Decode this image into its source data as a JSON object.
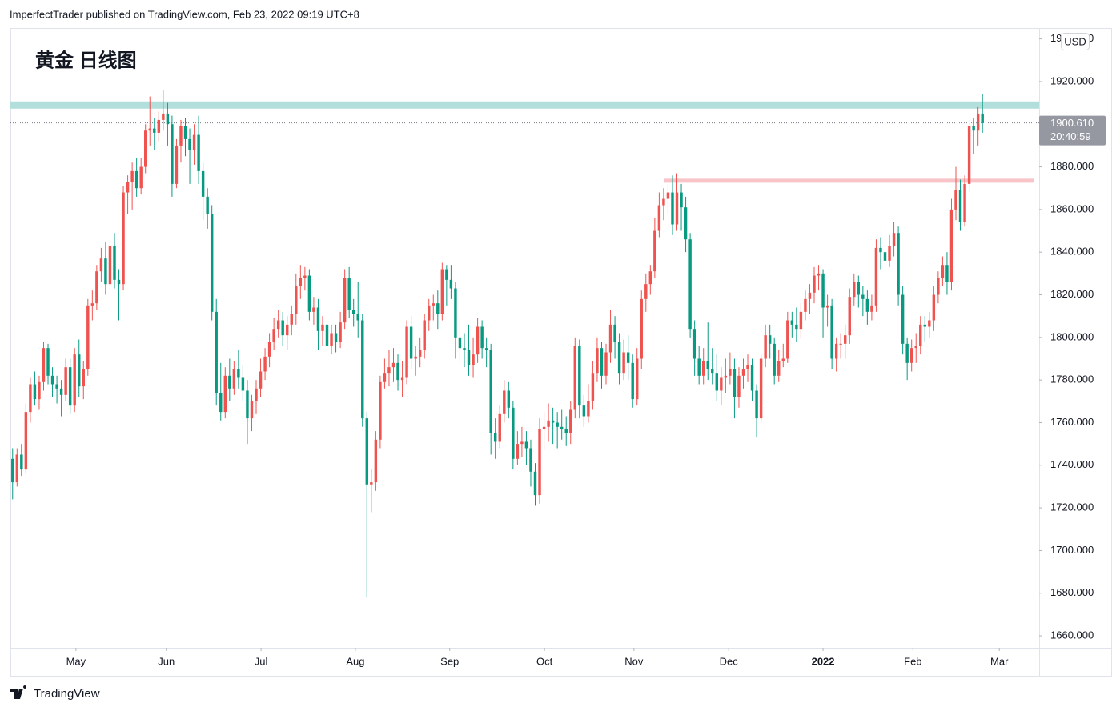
{
  "header": "ImperfectTrader published on TradingView.com, Feb 23, 2022 09:19 UTC+8",
  "footer": "TradingView",
  "chart_data": {
    "type": "candlestick",
    "title": "黄金 日线图",
    "currency": "USD",
    "up_color": "#ef5350",
    "down_color": "#089981",
    "xlim": [
      -0.5,
      231.8
    ],
    "xticks": [
      {
        "value": 14.3,
        "label": "May"
      },
      {
        "value": 34.7,
        "label": "Jun"
      },
      {
        "value": 56.1,
        "label": "Jul"
      },
      {
        "value": 77.4,
        "label": "Aug"
      },
      {
        "value": 98.7,
        "label": "Sep"
      },
      {
        "value": 120.1,
        "label": "Oct"
      },
      {
        "value": 140.3,
        "label": "Nov"
      },
      {
        "value": 161.7,
        "label": "Dec"
      },
      {
        "value": 183,
        "label": "2022",
        "bold": true
      },
      {
        "value": 203.3,
        "label": "Feb"
      },
      {
        "value": 222.8,
        "label": "Mar"
      }
    ],
    "ylim": [
      1654.4,
      1945.1
    ],
    "yticks": [
      {
        "value": 1660,
        "label": "1660.000"
      },
      {
        "value": 1680,
        "label": "1680.000"
      },
      {
        "value": 1700,
        "label": "1700.000"
      },
      {
        "value": 1720,
        "label": "1720.000"
      },
      {
        "value": 1740,
        "label": "1740.000"
      },
      {
        "value": 1760,
        "label": "1760.000"
      },
      {
        "value": 1780,
        "label": "1780.000"
      },
      {
        "value": 1800,
        "label": "1800.000"
      },
      {
        "value": 1820,
        "label": "1820.000"
      },
      {
        "value": 1840,
        "label": "1840.000"
      },
      {
        "value": 1860,
        "label": "1860.000"
      },
      {
        "value": 1880,
        "label": "1880.000"
      },
      {
        "value": 1900,
        "label": "1900.000"
      },
      {
        "value": 1920,
        "label": "1920.000"
      },
      {
        "value": 1940,
        "label": "1940.000"
      }
    ],
    "levels": [
      {
        "value": 1909,
        "color": "#b2dfdb"
      },
      {
        "value": 1873.5,
        "color": "#f8c4c8",
        "x_start": 147.2
      }
    ],
    "last_price": {
      "value": 1900.61,
      "label": "1900.610"
    },
    "countdown": "20:40:59",
    "candles": [
      [
        1743,
        1748,
        1724,
        1732
      ],
      [
        1732,
        1748,
        1730,
        1745
      ],
      [
        1745,
        1750,
        1735,
        1738
      ],
      [
        1738,
        1769,
        1736,
        1765
      ],
      [
        1765,
        1781,
        1760,
        1778
      ],
      [
        1778,
        1784,
        1768,
        1771
      ],
      [
        1771,
        1782,
        1766,
        1779
      ],
      [
        1779,
        1798,
        1775,
        1795
      ],
      [
        1795,
        1797,
        1778,
        1782
      ],
      [
        1782,
        1786,
        1772,
        1778
      ],
      [
        1778,
        1782,
        1769,
        1776
      ],
      [
        1776,
        1780,
        1763,
        1773
      ],
      [
        1773,
        1790,
        1770,
        1786
      ],
      [
        1786,
        1790,
        1764,
        1768
      ],
      [
        1768,
        1795,
        1765,
        1792
      ],
      [
        1792,
        1799,
        1772,
        1777
      ],
      [
        1777,
        1789,
        1771,
        1785
      ],
      [
        1785,
        1818,
        1782,
        1815
      ],
      [
        1815,
        1822,
        1808,
        1816
      ],
      [
        1816,
        1834,
        1813,
        1831
      ],
      [
        1831,
        1842,
        1826,
        1837
      ],
      [
        1837,
        1845,
        1820,
        1825
      ],
      [
        1825,
        1846,
        1822,
        1843
      ],
      [
        1843,
        1849,
        1823,
        1827
      ],
      [
        1827,
        1832,
        1808,
        1825
      ],
      [
        1825,
        1871,
        1822,
        1868
      ],
      [
        1868,
        1876,
        1858,
        1873
      ],
      [
        1873,
        1882,
        1860,
        1878
      ],
      [
        1878,
        1884,
        1866,
        1870
      ],
      [
        1870,
        1884,
        1867,
        1880
      ],
      [
        1880,
        1900,
        1877,
        1897
      ],
      [
        1897,
        1913,
        1890,
        1898
      ],
      [
        1898,
        1903,
        1888,
        1896
      ],
      [
        1896,
        1906,
        1892,
        1902
      ],
      [
        1902,
        1916,
        1897,
        1905
      ],
      [
        1905,
        1910,
        1890,
        1900
      ],
      [
        1900,
        1904,
        1866,
        1872
      ],
      [
        1872,
        1893,
        1870,
        1890
      ],
      [
        1890,
        1902,
        1882,
        1899
      ],
      [
        1899,
        1903,
        1885,
        1893
      ],
      [
        1893,
        1898,
        1872,
        1888
      ],
      [
        1888,
        1900,
        1881,
        1895
      ],
      [
        1895,
        1904,
        1872,
        1878
      ],
      [
        1878,
        1882,
        1855,
        1866
      ],
      [
        1866,
        1870,
        1851,
        1858
      ],
      [
        1858,
        1862,
        1808,
        1812
      ],
      [
        1812,
        1818,
        1768,
        1774
      ],
      [
        1774,
        1788,
        1761,
        1765
      ],
      [
        1765,
        1786,
        1762,
        1782
      ],
      [
        1782,
        1790,
        1770,
        1776
      ],
      [
        1776,
        1789,
        1773,
        1785
      ],
      [
        1785,
        1794,
        1776,
        1781
      ],
      [
        1781,
        1787,
        1770,
        1775
      ],
      [
        1775,
        1780,
        1750,
        1762
      ],
      [
        1762,
        1773,
        1756,
        1770
      ],
      [
        1770,
        1780,
        1764,
        1776
      ],
      [
        1776,
        1790,
        1772,
        1784
      ],
      [
        1784,
        1795,
        1780,
        1791
      ],
      [
        1791,
        1802,
        1786,
        1798
      ],
      [
        1798,
        1809,
        1794,
        1804
      ],
      [
        1804,
        1813,
        1800,
        1808
      ],
      [
        1808,
        1812,
        1796,
        1801
      ],
      [
        1801,
        1810,
        1794,
        1806
      ],
      [
        1806,
        1815,
        1801,
        1811
      ],
      [
        1811,
        1830,
        1806,
        1824
      ],
      [
        1824,
        1834,
        1818,
        1828
      ],
      [
        1828,
        1833,
        1822,
        1829
      ],
      [
        1829,
        1832,
        1808,
        1812
      ],
      [
        1812,
        1819,
        1806,
        1814
      ],
      [
        1814,
        1818,
        1794,
        1803
      ],
      [
        1803,
        1810,
        1796,
        1806
      ],
      [
        1806,
        1809,
        1791,
        1796
      ],
      [
        1796,
        1806,
        1792,
        1802
      ],
      [
        1802,
        1806,
        1793,
        1798
      ],
      [
        1798,
        1812,
        1795,
        1807
      ],
      [
        1807,
        1832,
        1804,
        1828
      ],
      [
        1828,
        1833,
        1809,
        1813
      ],
      [
        1813,
        1818,
        1805,
        1811
      ],
      [
        1811,
        1826,
        1800,
        1808
      ],
      [
        1808,
        1811,
        1758,
        1762
      ],
      [
        1762,
        1765,
        1678,
        1731
      ],
      [
        1731,
        1738,
        1718,
        1732
      ],
      [
        1732,
        1756,
        1728,
        1752
      ],
      [
        1752,
        1782,
        1748,
        1779
      ],
      [
        1779,
        1790,
        1776,
        1783
      ],
      [
        1783,
        1794,
        1777,
        1786
      ],
      [
        1786,
        1795,
        1779,
        1788
      ],
      [
        1788,
        1792,
        1775,
        1780
      ],
      [
        1780,
        1789,
        1772,
        1781
      ],
      [
        1781,
        1808,
        1778,
        1805
      ],
      [
        1805,
        1810,
        1785,
        1790
      ],
      [
        1790,
        1796,
        1782,
        1791
      ],
      [
        1791,
        1800,
        1786,
        1794
      ],
      [
        1794,
        1811,
        1790,
        1808
      ],
      [
        1808,
        1818,
        1803,
        1815
      ],
      [
        1815,
        1820,
        1808,
        1816
      ],
      [
        1816,
        1822,
        1804,
        1811
      ],
      [
        1811,
        1835,
        1808,
        1832
      ],
      [
        1832,
        1834,
        1815,
        1827
      ],
      [
        1827,
        1834,
        1818,
        1823
      ],
      [
        1823,
        1826,
        1790,
        1800
      ],
      [
        1800,
        1809,
        1788,
        1795
      ],
      [
        1795,
        1802,
        1786,
        1794
      ],
      [
        1794,
        1806,
        1782,
        1787
      ],
      [
        1787,
        1800,
        1781,
        1792
      ],
      [
        1792,
        1809,
        1788,
        1805
      ],
      [
        1805,
        1808,
        1790,
        1795
      ],
      [
        1795,
        1800,
        1786,
        1794
      ],
      [
        1794,
        1797,
        1745,
        1755
      ],
      [
        1755,
        1762,
        1743,
        1751
      ],
      [
        1751,
        1768,
        1748,
        1764
      ],
      [
        1764,
        1780,
        1760,
        1775
      ],
      [
        1775,
        1779,
        1762,
        1767
      ],
      [
        1767,
        1770,
        1738,
        1743
      ],
      [
        1743,
        1756,
        1740,
        1750
      ],
      [
        1750,
        1758,
        1744,
        1751
      ],
      [
        1751,
        1756,
        1740,
        1748
      ],
      [
        1748,
        1752,
        1730,
        1737
      ],
      [
        1737,
        1741,
        1721,
        1726
      ],
      [
        1726,
        1762,
        1722,
        1757
      ],
      [
        1757,
        1765,
        1747,
        1758
      ],
      [
        1758,
        1769,
        1751,
        1761
      ],
      [
        1761,
        1767,
        1750,
        1760
      ],
      [
        1760,
        1765,
        1748,
        1758
      ],
      [
        1758,
        1766,
        1752,
        1757
      ],
      [
        1757,
        1763,
        1749,
        1755
      ],
      [
        1755,
        1770,
        1750,
        1766
      ],
      [
        1766,
        1800,
        1762,
        1796
      ],
      [
        1796,
        1799,
        1762,
        1768
      ],
      [
        1768,
        1773,
        1758,
        1763
      ],
      [
        1763,
        1778,
        1760,
        1770
      ],
      [
        1770,
        1789,
        1766,
        1783
      ],
      [
        1783,
        1800,
        1779,
        1795
      ],
      [
        1795,
        1798,
        1776,
        1782
      ],
      [
        1782,
        1797,
        1778,
        1793
      ],
      [
        1793,
        1813,
        1788,
        1806
      ],
      [
        1806,
        1810,
        1790,
        1798
      ],
      [
        1798,
        1802,
        1778,
        1783
      ],
      [
        1783,
        1799,
        1780,
        1793
      ],
      [
        1793,
        1801,
        1780,
        1788
      ],
      [
        1788,
        1792,
        1767,
        1771
      ],
      [
        1771,
        1795,
        1768,
        1790
      ],
      [
        1790,
        1822,
        1785,
        1818
      ],
      [
        1818,
        1830,
        1812,
        1825
      ],
      [
        1825,
        1834,
        1820,
        1831
      ],
      [
        1831,
        1856,
        1828,
        1850
      ],
      [
        1850,
        1868,
        1847,
        1862
      ],
      [
        1862,
        1870,
        1855,
        1865
      ],
      [
        1865,
        1872,
        1858,
        1868
      ],
      [
        1868,
        1876,
        1848,
        1853
      ],
      [
        1853,
        1877,
        1850,
        1868
      ],
      [
        1868,
        1872,
        1850,
        1861
      ],
      [
        1861,
        1866,
        1840,
        1846
      ],
      [
        1846,
        1849,
        1800,
        1804
      ],
      [
        1804,
        1808,
        1782,
        1790
      ],
      [
        1790,
        1796,
        1778,
        1782
      ],
      [
        1782,
        1795,
        1778,
        1789
      ],
      [
        1789,
        1807,
        1780,
        1785
      ],
      [
        1785,
        1795,
        1778,
        1783
      ],
      [
        1783,
        1792,
        1770,
        1775
      ],
      [
        1775,
        1786,
        1768,
        1781
      ],
      [
        1781,
        1790,
        1774,
        1782
      ],
      [
        1782,
        1793,
        1778,
        1785
      ],
      [
        1785,
        1790,
        1762,
        1772
      ],
      [
        1772,
        1786,
        1767,
        1782
      ],
      [
        1782,
        1790,
        1776,
        1785
      ],
      [
        1785,
        1792,
        1779,
        1787
      ],
      [
        1787,
        1790,
        1770,
        1775
      ],
      [
        1775,
        1778,
        1753,
        1762
      ],
      [
        1762,
        1792,
        1760,
        1790
      ],
      [
        1790,
        1806,
        1786,
        1801
      ],
      [
        1801,
        1806,
        1790,
        1797
      ],
      [
        1797,
        1800,
        1778,
        1782
      ],
      [
        1782,
        1794,
        1779,
        1789
      ],
      [
        1789,
        1797,
        1786,
        1790
      ],
      [
        1790,
        1812,
        1788,
        1808
      ],
      [
        1808,
        1812,
        1800,
        1806
      ],
      [
        1806,
        1814,
        1798,
        1804
      ],
      [
        1804,
        1816,
        1800,
        1812
      ],
      [
        1812,
        1822,
        1808,
        1818
      ],
      [
        1818,
        1825,
        1811,
        1821
      ],
      [
        1821,
        1833,
        1816,
        1829
      ],
      [
        1829,
        1834,
        1822,
        1830
      ],
      [
        1830,
        1832,
        1800,
        1814
      ],
      [
        1814,
        1820,
        1805,
        1815
      ],
      [
        1815,
        1818,
        1785,
        1790
      ],
      [
        1790,
        1800,
        1784,
        1797
      ],
      [
        1797,
        1802,
        1790,
        1797
      ],
      [
        1797,
        1806,
        1790,
        1801
      ],
      [
        1801,
        1823,
        1797,
        1819
      ],
      [
        1819,
        1830,
        1815,
        1826
      ],
      [
        1826,
        1829,
        1814,
        1820
      ],
      [
        1820,
        1824,
        1810,
        1818
      ],
      [
        1818,
        1822,
        1806,
        1812
      ],
      [
        1812,
        1820,
        1808,
        1815
      ],
      [
        1815,
        1846,
        1812,
        1842
      ],
      [
        1842,
        1847,
        1832,
        1840
      ],
      [
        1840,
        1845,
        1830,
        1836
      ],
      [
        1836,
        1848,
        1833,
        1843
      ],
      [
        1843,
        1854,
        1838,
        1849
      ],
      [
        1849,
        1852,
        1815,
        1820
      ],
      [
        1820,
        1824,
        1792,
        1797
      ],
      [
        1797,
        1800,
        1780,
        1788
      ],
      [
        1788,
        1799,
        1784,
        1795
      ],
      [
        1795,
        1802,
        1788,
        1796
      ],
      [
        1796,
        1810,
        1792,
        1806
      ],
      [
        1806,
        1810,
        1798,
        1805
      ],
      [
        1805,
        1812,
        1800,
        1808
      ],
      [
        1808,
        1824,
        1803,
        1820
      ],
      [
        1820,
        1831,
        1816,
        1828
      ],
      [
        1828,
        1838,
        1824,
        1834
      ],
      [
        1834,
        1840,
        1820,
        1826
      ],
      [
        1826,
        1865,
        1822,
        1860
      ],
      [
        1860,
        1880,
        1855,
        1869
      ],
      [
        1869,
        1874,
        1850,
        1854
      ],
      [
        1854,
        1876,
        1852,
        1872
      ],
      [
        1872,
        1902,
        1868,
        1899
      ],
      [
        1899,
        1903,
        1886,
        1897
      ],
      [
        1897,
        1908,
        1890,
        1905
      ],
      [
        1905,
        1914,
        1896,
        1900.61
      ]
    ]
  }
}
